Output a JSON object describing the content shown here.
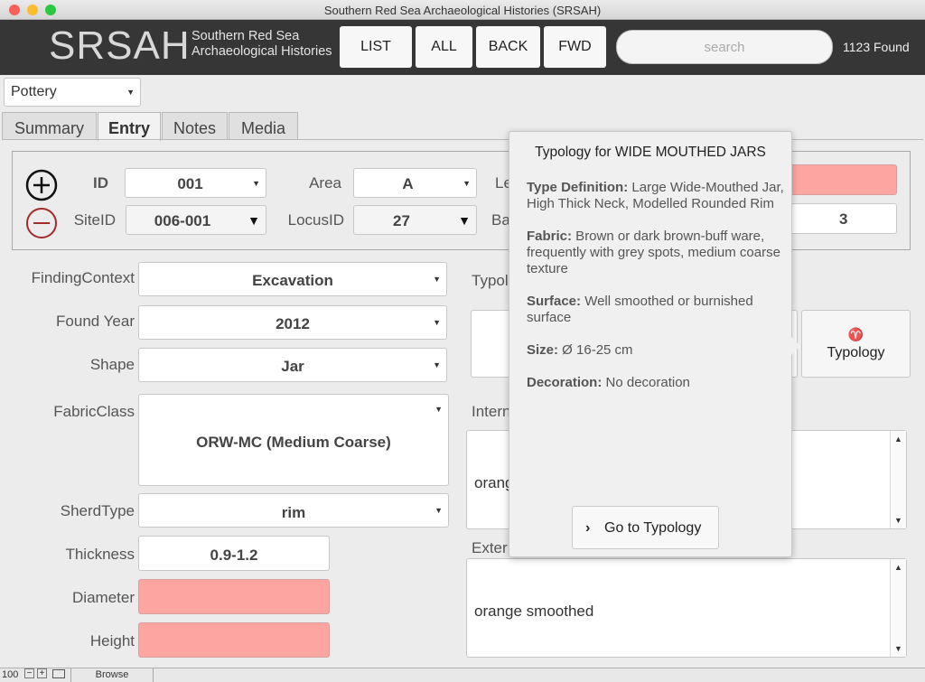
{
  "window": {
    "title": "Southern Red Sea Archaeological Histories (SRSAH)"
  },
  "header": {
    "logo": "SRSAH",
    "subtitle_line1": "Southern Red Sea",
    "subtitle_line2": "Archaeological Histories",
    "buttons": {
      "list": "LIST",
      "all": "ALL",
      "back": "BACK",
      "fwd": "FWD"
    },
    "search_placeholder": "search",
    "found": "1123 Found"
  },
  "layout_select": "Pottery",
  "tabs": {
    "summary": "Summary",
    "entry": "Entry",
    "notes": "Notes",
    "media": "Media"
  },
  "id_section": {
    "id_label": "ID",
    "id_value": "001",
    "area_label": "Area",
    "area_value": "A",
    "level_label_partial": "Le",
    "siteid_label": "SiteID",
    "siteid_value": "006-001",
    "locusid_label": "LocusID",
    "locusid_value": "27",
    "basket_label_partial": "Ba",
    "basket_value": "3"
  },
  "form": {
    "finding_context": {
      "label": "FindingContext",
      "value": "Excavation"
    },
    "found_year": {
      "label": "Found Year",
      "value": "2012"
    },
    "shape": {
      "label": "Shape",
      "value": "Jar"
    },
    "fabric_class": {
      "label": "FabricClass",
      "value": "ORW-MC (Medium Coarse)"
    },
    "sherd_type": {
      "label": "SherdType",
      "value": "rim"
    },
    "thickness": {
      "label": "Thickness",
      "value": "0.9-1.2"
    },
    "diameter": {
      "label": "Diameter",
      "value": ""
    },
    "height": {
      "label": "Height",
      "value": ""
    },
    "typology_label_partial": "Typol",
    "typology_button": "Typology",
    "internal_label_partial": "Intern",
    "internal_value_partial": "orang",
    "external_label_partial": "Exter",
    "external_value": "orange smoothed"
  },
  "popup": {
    "title": "Typology for WIDE MOUTHED JARS",
    "type_def_label": "Type Definition:",
    "type_def": " Large Wide-Mouthed Jar, High Thick Neck, Modelled Rounded Rim",
    "fabric_label": "Fabric:",
    "fabric": " Brown or dark brown-buff ware, frequently with grey spots, medium coarse texture",
    "surface_label": "Surface:",
    "surface": " Well smoothed or burnished surface",
    "size_label": "Size:",
    "size": " Ø 16-25 cm",
    "decoration_label": "Decoration:",
    "decoration": " No decoration",
    "goto_button": "Go to Typology"
  },
  "statusbar": {
    "zoom": "100",
    "mode": "Browse"
  }
}
